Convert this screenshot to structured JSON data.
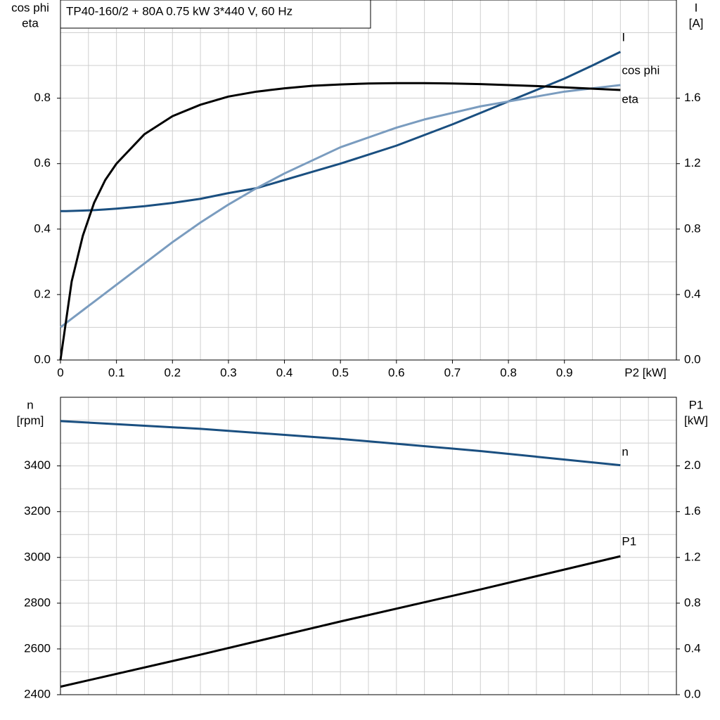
{
  "chart_data": [
    {
      "type": "line",
      "title": "TP40-160/2 + 80A   0.75 kW   3*440 V, 60 Hz",
      "y_label": [
        "cos phi",
        "eta"
      ],
      "y2_label": [
        "I",
        "[A]"
      ],
      "x_label": "P2 [kW]",
      "x": [
        0,
        0.01,
        0.02,
        0.04,
        0.06,
        0.08,
        0.1,
        0.15,
        0.2,
        0.25,
        0.3,
        0.35,
        0.4,
        0.45,
        0.5,
        0.55,
        0.6,
        0.65,
        0.7,
        0.75,
        0.8,
        0.85,
        0.9,
        0.95,
        1.0
      ],
      "series": [
        {
          "name": "I",
          "color": "#1a4f80",
          "axis": "y2",
          "values": [
            0.91,
            0.91,
            0.911,
            0.913,
            0.916,
            0.92,
            0.925,
            0.94,
            0.96,
            0.985,
            1.02,
            1.05,
            1.1,
            1.15,
            1.2,
            1.255,
            1.31,
            1.375,
            1.44,
            1.51,
            1.58,
            1.65,
            1.72,
            1.8,
            1.883
          ]
        },
        {
          "name": "cos phi",
          "color": "#7a9cbf",
          "values": [
            0.1,
            0.113,
            0.126,
            0.152,
            0.178,
            0.204,
            0.23,
            0.295,
            0.36,
            0.42,
            0.475,
            0.525,
            0.57,
            0.61,
            0.65,
            0.68,
            0.71,
            0.735,
            0.755,
            0.775,
            0.79,
            0.805,
            0.82,
            0.83,
            0.84
          ]
        },
        {
          "name": "eta",
          "color": "#000000",
          "values": [
            0,
            0.12,
            0.24,
            0.38,
            0.48,
            0.55,
            0.6,
            0.69,
            0.745,
            0.78,
            0.805,
            0.82,
            0.83,
            0.838,
            0.842,
            0.845,
            0.846,
            0.846,
            0.845,
            0.843,
            0.84,
            0.837,
            0.833,
            0.829,
            0.825
          ]
        }
      ],
      "xlim": [
        0,
        1.1
      ],
      "ylim": [
        0,
        1.1
      ],
      "y2lim": [
        0,
        2.2
      ],
      "xticks": [
        0,
        0.1,
        0.2,
        0.3,
        0.4,
        0.5,
        0.6,
        0.7,
        0.8,
        0.9
      ],
      "yticks": [
        {
          "value": 0,
          "label": "0.0"
        },
        0.2,
        0.4,
        0.6,
        0.8
      ],
      "y2ticks": [
        {
          "value": 0,
          "label": "0.0"
        },
        0.4,
        0.8,
        1.2,
        1.6
      ],
      "xgrid": [
        0.05,
        0.1,
        0.15,
        0.2,
        0.25,
        0.3,
        0.35,
        0.4,
        0.45,
        0.5,
        0.55,
        0.6,
        0.65,
        0.7,
        0.75,
        0.8,
        0.85,
        0.9,
        0.95,
        1.0,
        1.05
      ],
      "ygrid": [
        0.1,
        0.2,
        0.3,
        0.4,
        0.5,
        0.6,
        0.7,
        0.8,
        0.9,
        1.0
      ]
    },
    {
      "type": "line",
      "y_label": [
        "n",
        "[rpm]"
      ],
      "y2_label": [
        "P1",
        "[kW]"
      ],
      "x": [
        0,
        0.25,
        0.5,
        0.75,
        1.0
      ],
      "series": [
        {
          "name": "n",
          "color": "#1a4f80",
          "values": [
            3596,
            3562,
            3518,
            3465,
            3403
          ]
        },
        {
          "name": "P1",
          "color": "#000000",
          "axis": "y2",
          "values": [
            0.07,
            0.35,
            0.64,
            0.92,
            1.21
          ]
        }
      ],
      "xlim": [
        0,
        1.1
      ],
      "ylim": [
        2400,
        3700
      ],
      "y2lim": [
        0,
        2.6
      ],
      "yticks": [
        2400,
        2600,
        2800,
        3000,
        3200,
        3400
      ],
      "y2ticks": [
        {
          "value": 0,
          "label": "0.0"
        },
        0.4,
        0.8,
        1.2,
        1.6,
        {
          "value": 2,
          "label": "2.0"
        }
      ],
      "xgrid": [
        0.05,
        0.1,
        0.15,
        0.2,
        0.25,
        0.3,
        0.35,
        0.4,
        0.45,
        0.5,
        0.55,
        0.6,
        0.65,
        0.7,
        0.75,
        0.8,
        0.85,
        0.9,
        0.95,
        1.0,
        1.05
      ],
      "ygrid": [
        2500,
        2600,
        2700,
        2800,
        2900,
        3000,
        3100,
        3200,
        3300,
        3400,
        3500,
        3600
      ]
    }
  ]
}
